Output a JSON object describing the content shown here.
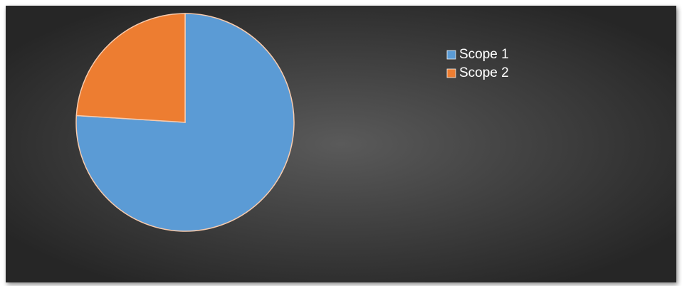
{
  "chart_data": {
    "type": "pie",
    "categories": [
      "Scope 1",
      "Scope 2"
    ],
    "values": [
      76,
      24
    ],
    "colors": [
      "#5b9bd5",
      "#ed7d31"
    ],
    "legend": "right"
  }
}
